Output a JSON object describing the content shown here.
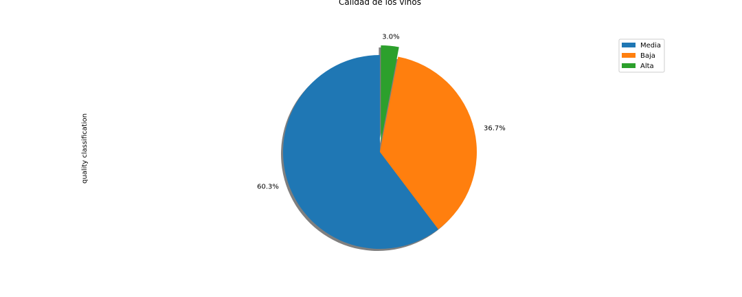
{
  "chart_data": {
    "type": "pie",
    "title": "Calidad de los vinos",
    "ylabel": "quality classification",
    "categories": [
      "Media",
      "Baja",
      "Alta"
    ],
    "values": [
      60.3,
      36.7,
      3.0
    ],
    "labels": [
      "60.3%",
      "36.7%",
      "3.0%"
    ],
    "colors": [
      "#1f77b4",
      "#ff7f0e",
      "#2ca02c"
    ],
    "explode": [
      0,
      0,
      0.1
    ],
    "shadow": true,
    "start_angle": 90,
    "legend": {
      "placement": "upper-right",
      "entries": [
        "Media",
        "Baja",
        "Alta"
      ]
    }
  }
}
